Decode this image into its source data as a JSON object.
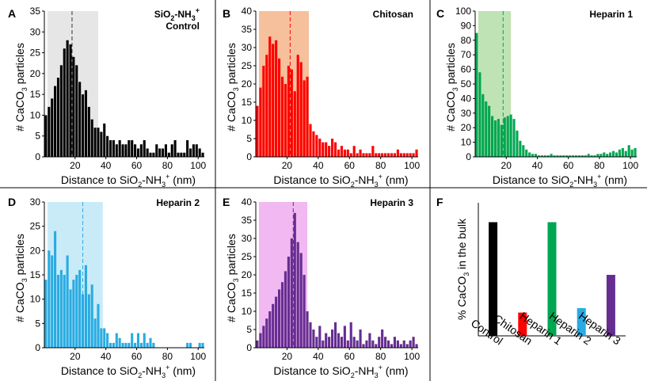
{
  "chart_data": [
    {
      "panel": "A",
      "type": "bar",
      "title_line1": "SiO2-NH3+",
      "title_line2": "Control",
      "xlabel": "Distance to SiO2-NH3+ (nm)",
      "ylabel": "# CaCO3 particles",
      "xlim": [
        0,
        104
      ],
      "ylim": [
        0,
        35
      ],
      "xticks": [
        20,
        40,
        60,
        80,
        100
      ],
      "yticks": [
        0,
        5,
        10,
        15,
        20,
        25,
        30,
        35
      ],
      "mean_line_x": 18,
      "shaded_range": [
        2,
        35
      ],
      "bar_color": "#000000",
      "shade_color": "#e6e6e6",
      "bin_start": 2,
      "bin_width": 2,
      "values": [
        10,
        12,
        14,
        17,
        19,
        22,
        26,
        28,
        27,
        24,
        22,
        18,
        15,
        16,
        12,
        9,
        7,
        7,
        6,
        8,
        5,
        4,
        4,
        3,
        4,
        3,
        3,
        4,
        4,
        3,
        2,
        3,
        4,
        2,
        1,
        1,
        3,
        2,
        2,
        3,
        1,
        3,
        4,
        1,
        1,
        1,
        4,
        2,
        3,
        3,
        2,
        1
      ]
    },
    {
      "panel": "B",
      "type": "bar",
      "title": "Chitosan",
      "xlabel": "Distance to SiO2-NH3+ (nm)",
      "ylabel": "# CaCO3 particles",
      "xlim": [
        0,
        104
      ],
      "ylim": [
        0,
        40
      ],
      "xticks": [
        20,
        40,
        60,
        80,
        100
      ],
      "yticks": [
        0,
        5,
        10,
        15,
        20,
        25,
        30,
        35,
        40
      ],
      "mean_line_x": 22,
      "shaded_range": [
        2,
        34
      ],
      "bar_color": "#ff0000",
      "shade_color": "#f6c09d",
      "bin_start": 2,
      "bin_width": 2,
      "values": [
        14,
        19,
        25,
        28,
        33,
        31,
        32,
        27,
        22,
        20,
        25,
        24,
        18,
        28,
        26,
        21,
        22,
        9,
        7,
        6,
        5,
        4,
        4,
        3,
        5,
        4,
        2,
        3,
        2,
        2,
        1,
        3,
        1,
        2,
        1,
        1,
        1,
        3,
        1,
        1,
        1,
        1,
        1,
        1,
        1,
        2,
        1,
        1,
        1,
        1,
        1,
        2
      ]
    },
    {
      "panel": "C",
      "type": "bar",
      "title": "Heparin 1",
      "xlabel": "Distance to SiO2-NH3+ (nm)",
      "ylabel": "# CaCO3 particles",
      "xlim": [
        0,
        104
      ],
      "ylim": [
        0,
        100
      ],
      "xticks": [
        20,
        40,
        60,
        80,
        100
      ],
      "yticks": [
        0,
        10,
        20,
        30,
        40,
        50,
        60,
        70,
        80,
        90,
        100
      ],
      "mean_line_x": 18,
      "shaded_range": [
        2,
        23
      ],
      "bar_color": "#00a651",
      "shade_color": "#bfe3b4",
      "bin_start": 2,
      "bin_width": 2,
      "values": [
        85,
        58,
        43,
        38,
        35,
        28,
        25,
        26,
        22,
        27,
        28,
        29,
        26,
        18,
        11,
        8,
        5,
        3,
        2,
        2,
        1,
        1,
        1,
        1,
        2,
        1,
        1,
        1,
        1,
        1,
        1,
        1,
        1,
        1,
        1,
        1,
        2,
        1,
        1,
        2,
        2,
        3,
        2,
        3,
        4,
        3,
        5,
        6,
        4,
        8,
        5,
        6
      ]
    },
    {
      "panel": "D",
      "type": "bar",
      "title": "Heparin 2",
      "xlabel": "Distance to SiO2-NH3+ (nm)",
      "ylabel": "# CaCO3 particles",
      "xlim": [
        0,
        104
      ],
      "ylim": [
        0,
        30
      ],
      "xticks": [
        20,
        40,
        60,
        80,
        100
      ],
      "yticks": [
        0,
        5,
        10,
        15,
        20,
        25,
        30
      ],
      "mean_line_x": 25,
      "shaded_range": [
        2,
        38
      ],
      "bar_color": "#29abe2",
      "shade_color": "#c9ebf8",
      "bin_start": 2,
      "bin_width": 2,
      "values": [
        14,
        20,
        19,
        24,
        15,
        16,
        15,
        19,
        12,
        14,
        15,
        16,
        11,
        17,
        11,
        13,
        6,
        9,
        4,
        4,
        3,
        1,
        1,
        3,
        2,
        1,
        1,
        1,
        3,
        1,
        3,
        1,
        3,
        1,
        2,
        1,
        0,
        0,
        0,
        0,
        0,
        0,
        0,
        0,
        0,
        0,
        1,
        1,
        0,
        0,
        1,
        1
      ]
    },
    {
      "panel": "E",
      "type": "bar",
      "title": "Heparin 3",
      "xlabel": "Distance to SiO2-NH3+ (nm)",
      "ylabel": "# CaCO3 particles",
      "xlim": [
        0,
        104
      ],
      "ylim": [
        0,
        40
      ],
      "xticks": [
        20,
        40,
        60,
        80,
        100
      ],
      "yticks": [
        0,
        5,
        10,
        15,
        20,
        25,
        30,
        35,
        40
      ],
      "mean_line_x": 24,
      "shaded_range": [
        2,
        33
      ],
      "bar_color": "#662d91",
      "shade_color": "#f2b8f2",
      "bin_start": 2,
      "bin_width": 2,
      "values": [
        2,
        4,
        6,
        8,
        10,
        12,
        14,
        16,
        18,
        21,
        25,
        30,
        37,
        29,
        26,
        20,
        10,
        7,
        5,
        3,
        6,
        2,
        4,
        3,
        5,
        7,
        4,
        3,
        6,
        2,
        7,
        3,
        2,
        5,
        1,
        2,
        4,
        2,
        1,
        3,
        5,
        3,
        2,
        1,
        3,
        2,
        1,
        2,
        1,
        2,
        3,
        1
      ]
    },
    {
      "panel": "F",
      "type": "bar",
      "ylabel": "% CaCO3 in the bulk",
      "ylim": [
        0,
        24
      ],
      "categories": [
        "Control",
        "Chitosan",
        "Heparin 1",
        "Heparin 2",
        "Heparin 3"
      ],
      "values": [
        20.5,
        4.2,
        20.5,
        5.0,
        11.0
      ],
      "colors": [
        "#000000",
        "#ff0000",
        "#00a651",
        "#29abe2",
        "#662d91"
      ]
    }
  ]
}
